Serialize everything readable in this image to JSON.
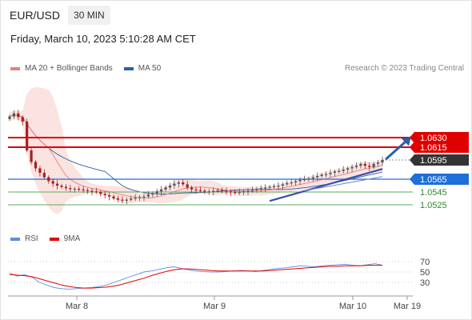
{
  "header": {
    "symbol": "EUR/USD",
    "timeframe": "30 MIN"
  },
  "datetime": "Friday, March 10, 2023 5:10:28 AM CET",
  "copyright": "Research © 2023 Trading Central",
  "colors": {
    "ma20": "#e8807a",
    "ma50": "#2e5fa7",
    "band_fill": "#fbe3e1",
    "resistance": "#e00000",
    "current": "#333333",
    "pivot": "#1e6fd9",
    "support": "#5fae5f",
    "candle_up": "#555555",
    "candle_down": "#a52020",
    "rsi": "#5b8fe0",
    "rsi_ma": "#e00000",
    "arrow": "#2c5ea8"
  },
  "chart_data": [
    {
      "type": "candlestick",
      "legend": [
        {
          "name": "MA 20 + Bollinger Bands",
          "color": "#e8807a"
        },
        {
          "name": "MA 50",
          "color": "#2e5fa7"
        }
      ],
      "x_ticks": [
        "Mar 8",
        "Mar 9",
        "Mar 10",
        "Mar 19"
      ],
      "ylim": [
        1.0505,
        1.0685
      ],
      "close": [
        1.0663,
        1.0668,
        1.0662,
        1.0655,
        1.061,
        1.0592,
        1.0582,
        1.0575,
        1.0568,
        1.0562,
        1.0558,
        1.0555,
        1.0553,
        1.0551,
        1.055,
        1.055,
        1.0549,
        1.0548,
        1.0547,
        1.0546,
        1.0545,
        1.0542,
        1.054,
        1.0538,
        1.0535,
        1.0533,
        1.0532,
        1.0533,
        1.0535,
        1.0536,
        1.0537,
        1.0538,
        1.0541,
        1.0543,
        1.0546,
        1.0549,
        1.0552,
        1.0555,
        1.0558,
        1.056,
        1.0557,
        1.0552,
        1.0549,
        1.0548,
        1.0547,
        1.0546,
        1.0546,
        1.0547,
        1.0548,
        1.0547,
        1.0546,
        1.0545,
        1.0544,
        1.0545,
        1.0546,
        1.0547,
        1.0548,
        1.055,
        1.0551,
        1.0552,
        1.0553,
        1.0554,
        1.0555,
        1.0557,
        1.0559,
        1.056,
        1.0562,
        1.0564,
        1.0565,
        1.0566,
        1.0568,
        1.057,
        1.0572,
        1.0573,
        1.0575,
        1.0577,
        1.0578,
        1.058,
        1.0582,
        1.0584,
        1.0586,
        1.0589,
        1.0586,
        1.0584,
        1.0589,
        1.0591,
        1.0595
      ],
      "annotations": {
        "resistance": [
          1.063,
          1.0615
        ],
        "last": 1.0595,
        "pivot": 1.0565,
        "support": [
          1.0545,
          1.0525
        ],
        "labels": [
          "1.0630",
          "1.0615",
          "1.0595",
          "1.0565",
          "1.0545",
          "1.0525"
        ]
      }
    },
    {
      "type": "line",
      "legend": [
        {
          "name": "RSI",
          "color": "#5b8fe0"
        },
        {
          "name": "9MA",
          "color": "#e00000"
        }
      ],
      "ylim": [
        10,
        90
      ],
      "y_ticks": [
        "70",
        "50",
        "30"
      ],
      "series": [
        {
          "name": "RSI",
          "values": [
            48,
            42,
            45,
            40,
            30,
            25,
            20,
            18,
            17,
            18,
            19,
            20,
            22,
            25,
            30,
            35,
            40,
            45,
            50,
            52,
            55,
            58,
            60,
            57,
            54,
            52,
            51,
            50,
            50,
            51,
            52,
            53,
            52,
            51,
            53,
            55,
            57,
            58,
            60,
            62,
            61,
            60,
            62,
            63,
            64,
            65,
            63,
            62,
            64,
            66,
            63
          ]
        },
        {
          "name": "9MA",
          "values": [
            45,
            44,
            43,
            41,
            37,
            33,
            29,
            25,
            22,
            20,
            19,
            19,
            20,
            21,
            23,
            26,
            30,
            34,
            38,
            43,
            47,
            51,
            54,
            56,
            56,
            55,
            54,
            53,
            52,
            52,
            52,
            52,
            52,
            52,
            52,
            53,
            54,
            55,
            56,
            57,
            58,
            59,
            60,
            61,
            61,
            62,
            62,
            62,
            63,
            63,
            63
          ]
        }
      ]
    }
  ]
}
